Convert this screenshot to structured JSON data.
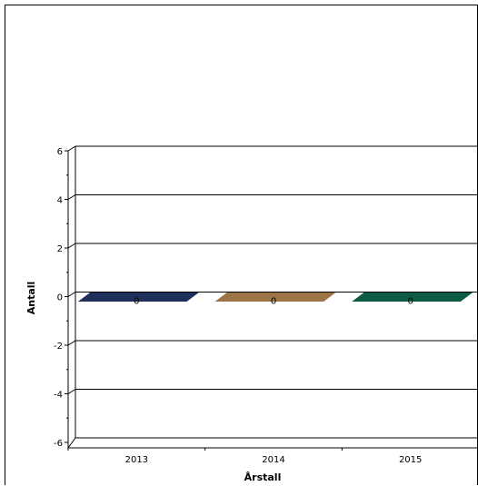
{
  "chart_data": {
    "type": "bar",
    "title": "",
    "xlabel": "Årstall",
    "ylabel": "Antall",
    "categories": [
      "2013",
      "2014",
      "2015"
    ],
    "series": [
      {
        "values": [
          0,
          0,
          0
        ]
      }
    ],
    "bar_colors": [
      "#1f2f5c",
      "#9c7446",
      "#0e5b45"
    ],
    "data_labels": [
      "0",
      "0",
      "0"
    ],
    "ylim": [
      -6,
      6
    ],
    "yticks": [
      "6",
      "4",
      "2",
      "0",
      "-2",
      "-4",
      "-6"
    ],
    "grid": true,
    "legend": "none",
    "style": "3d"
  }
}
